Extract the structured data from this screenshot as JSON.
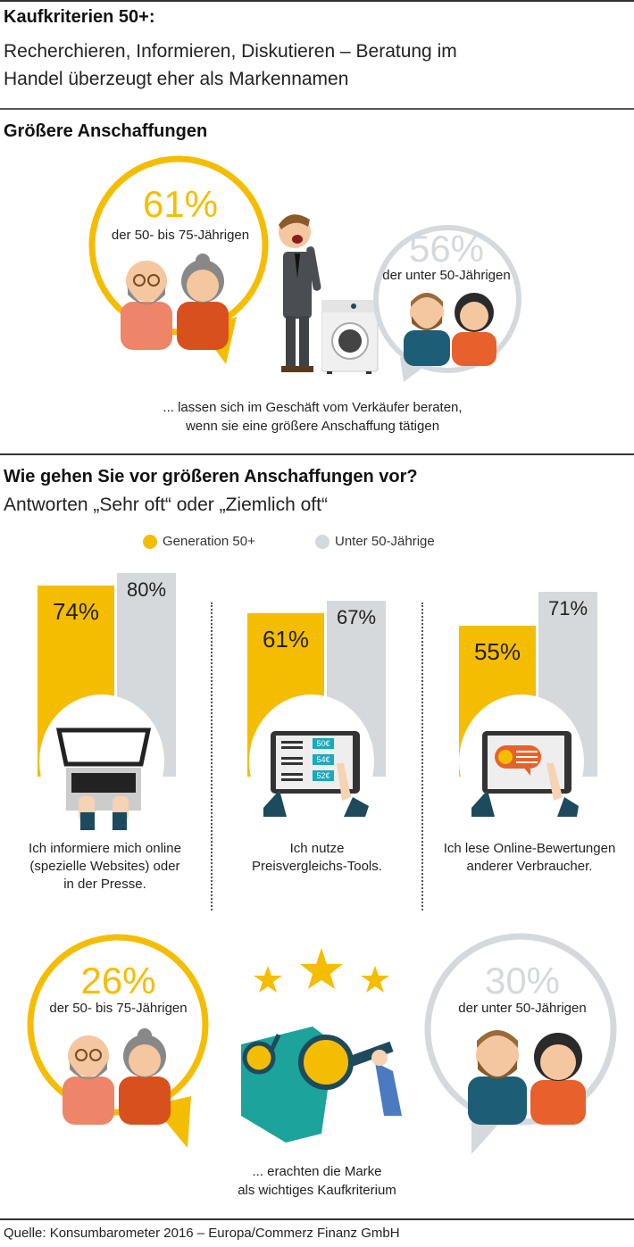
{
  "header": {
    "title": "Kaufkriterien 50+:",
    "subtitle_line1": "Recherchieren, Informieren, Diskutieren – Beratung im",
    "subtitle_line2": "Handel überzeugt eher als Markennamen"
  },
  "section1": {
    "title": "Größere Anschaffungen",
    "older": {
      "value": "61%",
      "label": "der 50- bis 75-Jährigen"
    },
    "younger": {
      "value": "56%",
      "label": "der unter 50-Jährigen"
    },
    "caption_line1": "... lassen sich im Geschäft vom Verkäufer beraten,",
    "caption_line2": "wenn sie eine größere Anschaffung tätigen"
  },
  "section2": {
    "title": "Wie gehen Sie vor größeren Anschaffungen vor?",
    "subtitle": "Antworten „Sehr oft“ oder „Ziemlich oft“",
    "price_tags": [
      "50€",
      "54€",
      "52€"
    ]
  },
  "section3": {
    "older": {
      "value": "26%",
      "label": "der 50- bis 75-Jährigen"
    },
    "younger": {
      "value": "30%",
      "label": "der unter 50-Jährigen"
    },
    "caption_line1": "... erachten die Marke",
    "caption_line2": "als wichtiges Kaufkriterium"
  },
  "footer": {
    "source": "Quelle: Konsumbarometer 2016 – Europa/Commerz Finanz GmbH"
  },
  "colors": {
    "yellow": "#f5bd00",
    "grey": "#d5d9dc",
    "orange": "#e8612c",
    "teal": "#1aa8bd",
    "navy": "#1d4a5c"
  },
  "chart_data": {
    "type": "bar",
    "title": "Wie gehen Sie vor größeren Anschaffungen vor?",
    "subtitle": "Antworten „Sehr oft“ oder „Ziemlich oft“",
    "legend": [
      "Generation 50+",
      "Unter 50-Jährige"
    ],
    "legend_position": "top-center",
    "ylim": [
      0,
      100
    ],
    "categories": [
      [
        "Ich informiere mich online",
        "(spezielle Websites) oder",
        "in der Presse."
      ],
      [
        "Ich nutze",
        "Preisvergleichs-Tools."
      ],
      [
        "Ich lese Online-Bewertungen",
        "anderer Verbraucher."
      ]
    ],
    "series": [
      {
        "name": "Generation 50+",
        "values": [
          74,
          61,
          55
        ],
        "labels": [
          "74%",
          "61%",
          "55%"
        ]
      },
      {
        "name": "Unter 50-Jährige",
        "values": [
          80,
          67,
          71
        ],
        "labels": [
          "80%",
          "67%",
          "71%"
        ]
      }
    ]
  }
}
